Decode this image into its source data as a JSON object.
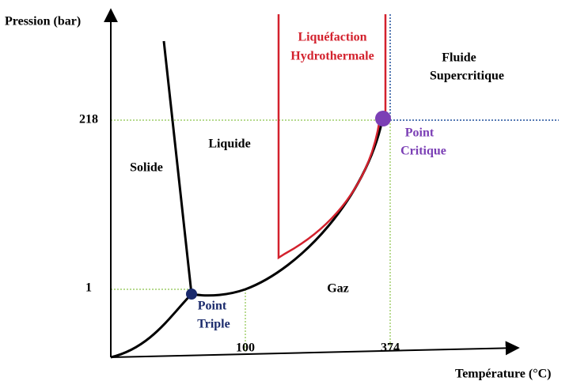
{
  "axes": {
    "y_label": "Pression (bar)",
    "x_label": "Température (°C)",
    "y_ticks": [
      "218",
      "1"
    ],
    "x_ticks": [
      "100",
      "374"
    ]
  },
  "regions": {
    "solid": "Solide",
    "liquid": "Liquide",
    "gas": "Gaz",
    "supercritical": [
      "Fluide",
      "Supercritique"
    ],
    "htl": [
      "Liquéfaction",
      "Hydrothermale"
    ]
  },
  "points": {
    "triple": [
      "Point",
      "Triple"
    ],
    "critical": [
      "Point",
      "Critique"
    ]
  }
}
